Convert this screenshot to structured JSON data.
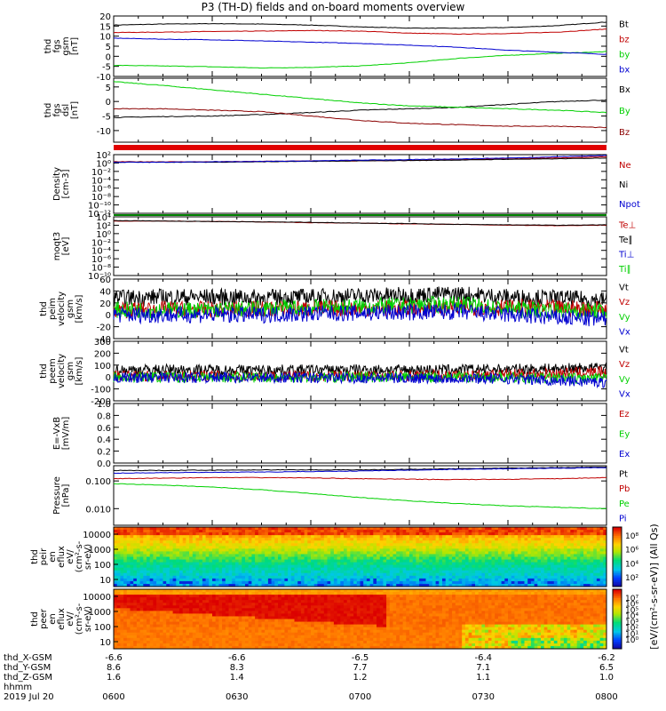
{
  "title": "P3 (TH-D) fields and on-board moments overview",
  "colors": {
    "black": "#000000",
    "red": "#c00000",
    "green": "#00d000",
    "blue": "#0000d0",
    "darkred": "#8b0000"
  },
  "chart_data": [
    {
      "type": "line",
      "panel": "fgs-gsm",
      "ylabel": [
        "thd",
        "fgs",
        "gsm",
        "[nT]"
      ],
      "ylim": [
        -10,
        20
      ],
      "yticks": [
        "20",
        "15",
        "10",
        "5",
        "0",
        "-5",
        "-10"
      ],
      "legend": [
        {
          "label": "Bt",
          "color": "black"
        },
        {
          "label": "bz",
          "color": "red"
        },
        {
          "label": "by",
          "color": "green"
        },
        {
          "label": "bx",
          "color": "blue"
        }
      ],
      "series": [
        {
          "name": "Bt",
          "color": "black",
          "values": [
            15.5,
            16.0,
            16.2,
            16.0,
            15.5,
            14.6,
            14.0,
            13.9,
            14.3,
            15.2,
            17.0
          ]
        },
        {
          "name": "bz",
          "color": "red",
          "values": [
            11.8,
            12.0,
            12.3,
            12.5,
            12.8,
            12.5,
            11.5,
            11.0,
            11.3,
            12.0,
            13.5
          ]
        },
        {
          "name": "by",
          "color": "green",
          "values": [
            -4.5,
            -4.8,
            -5.2,
            -5.8,
            -5.5,
            -4.8,
            -3.2,
            -1.0,
            0.5,
            1.5,
            2.3
          ]
        },
        {
          "name": "bx",
          "color": "blue",
          "values": [
            9.0,
            8.5,
            8.2,
            7.6,
            7.0,
            6.4,
            5.5,
            4.5,
            3.0,
            2.0,
            1.0
          ]
        }
      ]
    },
    {
      "type": "line",
      "panel": "fgs-dsl",
      "ylabel": [
        "thd",
        "fgs",
        "dsl",
        "[nT]"
      ],
      "ylim": [
        -14,
        8
      ],
      "yticks": [
        "5",
        "0",
        "-5",
        "-10"
      ],
      "legend": [
        {
          "label": "Bx",
          "color": "black"
        },
        {
          "label": "By",
          "color": "green"
        },
        {
          "label": "Bz",
          "color": "darkred"
        }
      ],
      "series": [
        {
          "name": "Bx",
          "color": "black",
          "values": [
            -5.5,
            -5.2,
            -5.0,
            -4.5,
            -3.8,
            -3.0,
            -2.5,
            -2.0,
            -1.0,
            0,
            0.5
          ]
        },
        {
          "name": "By",
          "color": "green",
          "values": [
            6.8,
            5.5,
            4.0,
            2.5,
            1.0,
            -0.5,
            -1.5,
            -2.0,
            -2.5,
            -3.0,
            -3.8
          ]
        },
        {
          "name": "Bz",
          "color": "darkred",
          "values": [
            -2.5,
            -2.5,
            -3.0,
            -3.5,
            -5.0,
            -6.5,
            -7.5,
            -8.0,
            -8.5,
            -8.5,
            -9.0
          ]
        }
      ]
    },
    {
      "type": "line",
      "panel": "density",
      "ylabel": [
        "Density",
        "[cm-3]"
      ],
      "yscale": "log",
      "ylim": [
        -12,
        2
      ],
      "yticks": [
        "10²",
        "10⁰",
        "10⁻²",
        "10⁻⁴",
        "10⁻⁶",
        "10⁻⁸",
        "10⁻¹⁰",
        "10⁻¹²"
      ],
      "legend": [
        {
          "label": "Ne",
          "color": "red"
        },
        {
          "label": "Ni",
          "color": "black"
        },
        {
          "label": "Npot",
          "color": "blue"
        }
      ],
      "series": [
        {
          "name": "Ne",
          "color": "red",
          "values": [
            0.3,
            0.3,
            0.3,
            0.4,
            0.5,
            0.5,
            0.6,
            0.8,
            1.0,
            1.2,
            1.5
          ]
        },
        {
          "name": "Ni",
          "color": "black",
          "values": [
            0.2,
            0.2,
            0.2,
            0.3,
            0.4,
            0.5,
            0.6,
            0.7,
            0.9,
            1.0,
            1.2
          ]
        },
        {
          "name": "Npot",
          "color": "blue",
          "values": [
            0.2,
            0.2,
            0.3,
            0.4,
            0.5,
            0.7,
            0.8,
            1.0,
            1.2,
            1.5,
            1.8
          ]
        }
      ]
    },
    {
      "type": "line",
      "panel": "temperature",
      "ylabel": [
        "moqt3",
        "[eV]"
      ],
      "yscale": "log",
      "ylim": [
        -10,
        4
      ],
      "yticks": [
        "10⁴",
        "10²",
        "10⁰",
        "10⁻²",
        "10⁻⁴",
        "10⁻⁶",
        "10⁻⁸",
        "10⁻¹⁰"
      ],
      "legend": [
        {
          "label": "Te⊥",
          "color": "red"
        },
        {
          "label": "Te∥",
          "color": "black"
        },
        {
          "label": "Ti⊥",
          "color": "blue"
        },
        {
          "label": "Ti∥",
          "color": "green"
        }
      ],
      "series": [
        {
          "name": "Te⊥",
          "color": "red",
          "values": [
            3.0,
            3.0,
            2.9,
            2.8,
            2.6,
            2.5,
            2.3,
            2.2,
            2.0,
            1.9,
            2.0
          ]
        },
        {
          "name": "Te∥",
          "color": "black",
          "values": [
            3.1,
            3.0,
            2.9,
            2.8,
            2.7,
            2.5,
            2.4,
            2.2,
            2.1,
            2.0,
            2.1
          ]
        }
      ]
    },
    {
      "type": "line",
      "panel": "peim-velocity",
      "ylabel": [
        "thd",
        "peim",
        "velocity",
        "gsm",
        "[km/s]"
      ],
      "ylim": [
        -40,
        60
      ],
      "yticks": [
        "60",
        "40",
        "20",
        "0",
        "-20",
        "-40"
      ],
      "legend": [
        {
          "label": "Vt",
          "color": "black"
        },
        {
          "label": "Vz",
          "color": "red"
        },
        {
          "label": "Vy",
          "color": "green"
        },
        {
          "label": "Vx",
          "color": "blue"
        }
      ],
      "series": [
        {
          "name": "Vt",
          "color": "black",
          "values": [
            28,
            30,
            30,
            29,
            30,
            32,
            33,
            35,
            30,
            28,
            25
          ]
        },
        {
          "name": "Vz",
          "color": "red",
          "values": [
            8,
            9,
            9,
            10,
            10,
            11,
            11,
            12,
            12,
            11,
            10
          ]
        },
        {
          "name": "Vy",
          "color": "green",
          "values": [
            8,
            8,
            8,
            10,
            12,
            14,
            16,
            18,
            10,
            8,
            6
          ]
        },
        {
          "name": "Vx",
          "color": "blue",
          "values": [
            0,
            0,
            0,
            0,
            2,
            3,
            4,
            5,
            0,
            -5,
            -8
          ]
        }
      ]
    },
    {
      "type": "line",
      "panel": "peem-velocity",
      "ylabel": [
        "thd",
        "peem",
        "velocity",
        "gsm",
        "[km/s]"
      ],
      "ylim": [
        -200,
        300
      ],
      "yticks": [
        "300",
        "200",
        "100",
        "0",
        "-100",
        "-200"
      ],
      "legend": [
        {
          "label": "Vt",
          "color": "black"
        },
        {
          "label": "Vz",
          "color": "red"
        },
        {
          "label": "Vy",
          "color": "green"
        },
        {
          "label": "Vx",
          "color": "blue"
        }
      ],
      "series": [
        {
          "name": "Vt",
          "color": "black",
          "values": [
            60,
            62,
            60,
            58,
            60,
            62,
            60,
            62,
            65,
            70,
            80
          ]
        },
        {
          "name": "Vz",
          "color": "red",
          "values": [
            10,
            10,
            12,
            10,
            10,
            12,
            12,
            15,
            20,
            30,
            45
          ]
        },
        {
          "name": "Vy",
          "color": "green",
          "values": [
            0,
            0,
            0,
            -2,
            0,
            0,
            0,
            0,
            -5,
            -10,
            -15
          ]
        },
        {
          "name": "Vx",
          "color": "blue",
          "values": [
            -5,
            -5,
            -5,
            -5,
            -5,
            -8,
            -10,
            -10,
            -15,
            -30,
            -45
          ]
        }
      ]
    },
    {
      "type": "line",
      "panel": "efield",
      "ylabel": [
        "E=-VxB",
        "[mV/m]"
      ],
      "ylim": [
        0,
        1
      ],
      "yticks": [
        "1.0",
        "0.8",
        "0.6",
        "0.4",
        "0.2",
        "0.0"
      ],
      "legend": [
        {
          "label": "Ez",
          "color": "red"
        },
        {
          "label": "Ey",
          "color": "green"
        },
        {
          "label": "Ex",
          "color": "blue"
        }
      ],
      "series": []
    },
    {
      "type": "line",
      "panel": "pressure",
      "ylabel": [
        "Pressure",
        "[nPa]"
      ],
      "yscale": "log",
      "ylim": [
        -2.6,
        -0.45
      ],
      "yticks": [
        "0.100",
        "0.010"
      ],
      "ytickvals": [
        -1,
        -2
      ],
      "legend": [
        {
          "label": "Pt",
          "color": "black"
        },
        {
          "label": "Pb",
          "color": "red"
        },
        {
          "label": "Pe",
          "color": "green"
        },
        {
          "label": "Pi",
          "color": "blue"
        }
      ],
      "series": [
        {
          "name": "Pt",
          "color": "black",
          "values": [
            -0.62,
            -0.62,
            -0.61,
            -0.6,
            -0.6,
            -0.6,
            -0.58,
            -0.56,
            -0.54,
            -0.52,
            -0.5
          ]
        },
        {
          "name": "Pi",
          "color": "blue",
          "values": [
            -0.72,
            -0.7,
            -0.69,
            -0.68,
            -0.66,
            -0.64,
            -0.61,
            -0.58,
            -0.56,
            -0.54,
            -0.52
          ]
        },
        {
          "name": "Pb",
          "color": "red",
          "values": [
            -0.92,
            -0.9,
            -0.88,
            -0.88,
            -0.89,
            -0.92,
            -0.94,
            -0.95,
            -0.94,
            -0.92,
            -0.88
          ]
        },
        {
          "name": "Pe",
          "color": "green",
          "values": [
            -1.1,
            -1.15,
            -1.22,
            -1.32,
            -1.45,
            -1.6,
            -1.72,
            -1.82,
            -1.9,
            -1.95,
            -2.0
          ]
        }
      ]
    },
    {
      "type": "heatmap",
      "panel": "peir-spectrogram",
      "ylabel": [
        "thd",
        "peir",
        "en",
        "eflux",
        "eV/",
        "(cm²-s-",
        "sr-eV)"
      ],
      "yscale": "log",
      "yticks": [
        "10000",
        "1000",
        "100",
        "10"
      ]
    },
    {
      "type": "heatmap",
      "panel": "peer-spectrogram",
      "ylabel": [
        "thd",
        "peer",
        "en",
        "eflux",
        "eV/",
        "(cm²-s-",
        "sr-eV)"
      ],
      "yscale": "log",
      "yticks": [
        "10000",
        "1000",
        "100",
        "10"
      ]
    }
  ],
  "colorbar": {
    "label": "[eV/(cm²-s-sr-eV)] (All Qs)",
    "ticks_top": [
      "10⁸",
      "10⁶",
      "10⁴",
      "10²"
    ],
    "ticks_bottom": [
      "10⁷",
      "10⁶",
      "10⁵",
      "10⁴",
      "10³",
      "10²",
      "10¹",
      "10⁰"
    ]
  },
  "xaxis": {
    "row_labels": [
      "thd_X-GSM",
      "thd_Y-GSM",
      "thd_Z-GSM",
      "hhmm",
      "2019 Jul 20"
    ],
    "columns": [
      {
        "x": "-6.6",
        "y": "8.6",
        "z": "1.6",
        "t": "0600"
      },
      {
        "x": "-6.6",
        "y": "8.3",
        "z": "1.4",
        "t": "0630"
      },
      {
        "x": "-6.5",
        "y": "7.7",
        "z": "1.2",
        "t": "0700"
      },
      {
        "x": "-6.4",
        "y": "7.1",
        "z": "1.1",
        "t": "0730"
      },
      {
        "x": "-6.2",
        "y": "6.5",
        "z": "1.0",
        "t": "0800"
      }
    ]
  }
}
